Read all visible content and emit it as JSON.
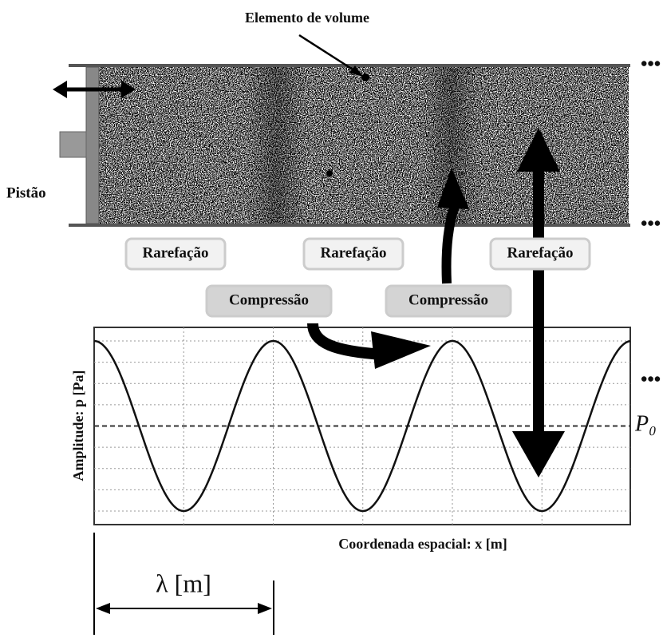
{
  "volume_label": "Elemento de volume",
  "piston_label": "Pistão",
  "rarefaction_labels": [
    "Rarefação",
    "Rarefação",
    "Rarefação"
  ],
  "compression_labels": [
    "Compressão",
    "Compressão"
  ],
  "plot": {
    "y_label": "Amplitude: p [Pa]",
    "x_label": "Coordenada espacial: x [m]",
    "reference_label": "P₀",
    "wavelength_label": "λ [m]"
  }
}
